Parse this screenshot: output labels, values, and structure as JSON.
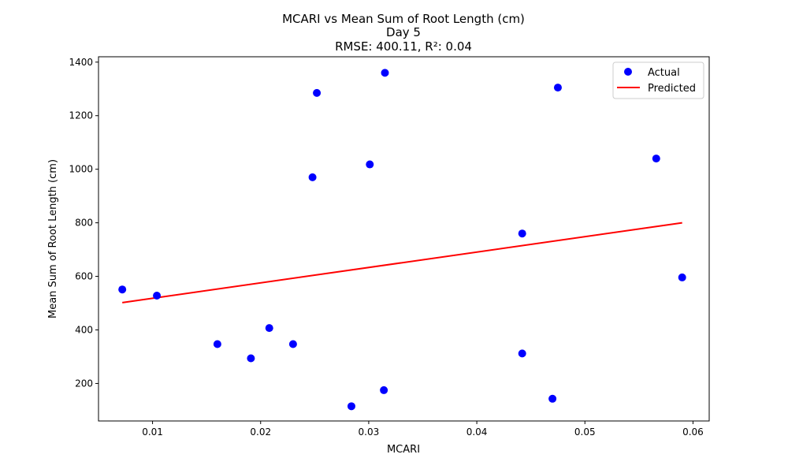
{
  "chart_data": {
    "type": "scatter",
    "title_lines": [
      "MCARI vs Mean Sum of Root Length (cm)",
      "Day 5",
      "RMSE: 400.11, R²: 0.04"
    ],
    "xlabel": "MCARI",
    "ylabel": "Mean Sum of Root Length (cm)",
    "xlim": [
      0.005,
      0.0615
    ],
    "ylim": [
      60,
      1420
    ],
    "x_ticks": [
      0.01,
      0.02,
      0.03,
      0.04,
      0.05,
      0.06
    ],
    "x_tick_labels": [
      "0.01",
      "0.02",
      "0.03",
      "0.04",
      "0.05",
      "0.06"
    ],
    "y_ticks": [
      200,
      400,
      600,
      800,
      1000,
      1200,
      1400
    ],
    "y_tick_labels": [
      "200",
      "400",
      "600",
      "800",
      "1000",
      "1200",
      "1400"
    ],
    "legend_position": "top-right",
    "grid": false,
    "series": [
      {
        "name": "Actual",
        "kind": "scatter",
        "color": "#0000ff",
        "points": [
          {
            "x": 0.0072,
            "y": 551
          },
          {
            "x": 0.0104,
            "y": 528
          },
          {
            "x": 0.016,
            "y": 347
          },
          {
            "x": 0.0191,
            "y": 294
          },
          {
            "x": 0.0208,
            "y": 407
          },
          {
            "x": 0.023,
            "y": 347
          },
          {
            "x": 0.0248,
            "y": 970
          },
          {
            "x": 0.0252,
            "y": 1285
          },
          {
            "x": 0.0284,
            "y": 115
          },
          {
            "x": 0.0301,
            "y": 1018
          },
          {
            "x": 0.0314,
            "y": 175
          },
          {
            "x": 0.0315,
            "y": 1360
          },
          {
            "x": 0.0442,
            "y": 760
          },
          {
            "x": 0.0442,
            "y": 312
          },
          {
            "x": 0.047,
            "y": 143
          },
          {
            "x": 0.0475,
            "y": 1305
          },
          {
            "x": 0.0566,
            "y": 1040
          },
          {
            "x": 0.059,
            "y": 596
          }
        ]
      },
      {
        "name": "Predicted",
        "kind": "line",
        "color": "#ff0000",
        "points": [
          {
            "x": 0.0072,
            "y": 502
          },
          {
            "x": 0.059,
            "y": 800
          }
        ]
      }
    ]
  }
}
